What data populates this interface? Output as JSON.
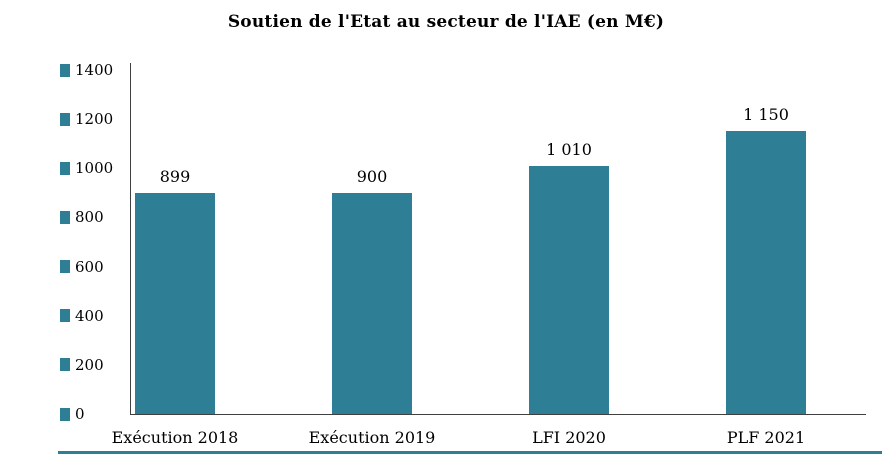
{
  "chart_data": {
    "type": "bar",
    "title": "Soutien de l'Etat au secteur de l'IAE (en M€)",
    "categories": [
      "Exécution 2018",
      "Exécution 2019",
      "LFI 2020",
      "PLF 2021"
    ],
    "values": [
      899,
      900,
      1010,
      1150
    ],
    "value_labels": [
      "899",
      "900",
      "1 010",
      "1 150"
    ],
    "ylim": [
      0,
      1400
    ],
    "ytick_step": 200,
    "ytick_labels": [
      "0",
      "200",
      "400",
      "600",
      "800",
      "1000",
      "1200",
      "1400"
    ],
    "grid": false,
    "legend": "none",
    "bar_color": "#2E7E95",
    "accent_color": "#2E7E95",
    "axis_color": "#404040",
    "text_color": "#000000"
  }
}
